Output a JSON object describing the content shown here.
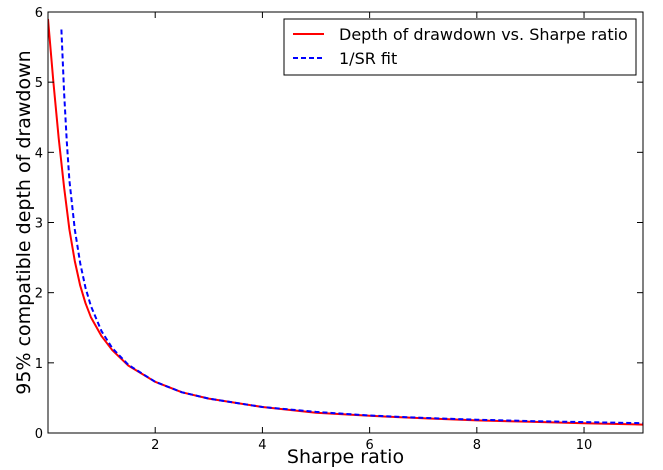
{
  "chart_data": {
    "type": "line",
    "xlabel": "Sharpe ratio",
    "ylabel": "95% compatible depth of drawdown",
    "xlim": [
      0,
      11.1
    ],
    "ylim": [
      0,
      6
    ],
    "xticks": [
      2,
      4,
      6,
      8,
      10
    ],
    "yticks": [
      0,
      1,
      2,
      3,
      4,
      5,
      6
    ],
    "grid": false,
    "legend_position": "top-right",
    "series": [
      {
        "name": "Depth of drawdown vs. Sharpe ratio",
        "color": "#ff0000",
        "style": "solid",
        "x": [
          0.0,
          0.1,
          0.2,
          0.3,
          0.4,
          0.5,
          0.6,
          0.7,
          0.8,
          1.0,
          1.2,
          1.5,
          2.0,
          2.5,
          3.0,
          4.0,
          5.0,
          6.0,
          7.0,
          8.0,
          9.0,
          10.0,
          11.1
        ],
        "y": [
          5.9,
          5.0,
          4.2,
          3.5,
          2.9,
          2.45,
          2.1,
          1.85,
          1.65,
          1.38,
          1.18,
          0.96,
          0.73,
          0.58,
          0.49,
          0.37,
          0.29,
          0.245,
          0.21,
          0.18,
          0.16,
          0.14,
          0.12
        ]
      },
      {
        "name": "1/SR fit",
        "color": "#0000ff",
        "style": "dashed",
        "x": [
          0.25,
          0.3,
          0.35,
          0.4,
          0.5,
          0.6,
          0.7,
          0.8,
          1.0,
          1.2,
          1.5,
          2.0,
          2.5,
          3.0,
          4.0,
          5.0,
          6.0,
          7.0,
          8.0,
          9.0,
          10.0,
          11.1
        ],
        "y": [
          5.75,
          4.85,
          4.15,
          3.6,
          2.9,
          2.42,
          2.07,
          1.81,
          1.45,
          1.21,
          0.97,
          0.73,
          0.58,
          0.49,
          0.37,
          0.3,
          0.25,
          0.215,
          0.19,
          0.17,
          0.155,
          0.14
        ]
      }
    ]
  }
}
